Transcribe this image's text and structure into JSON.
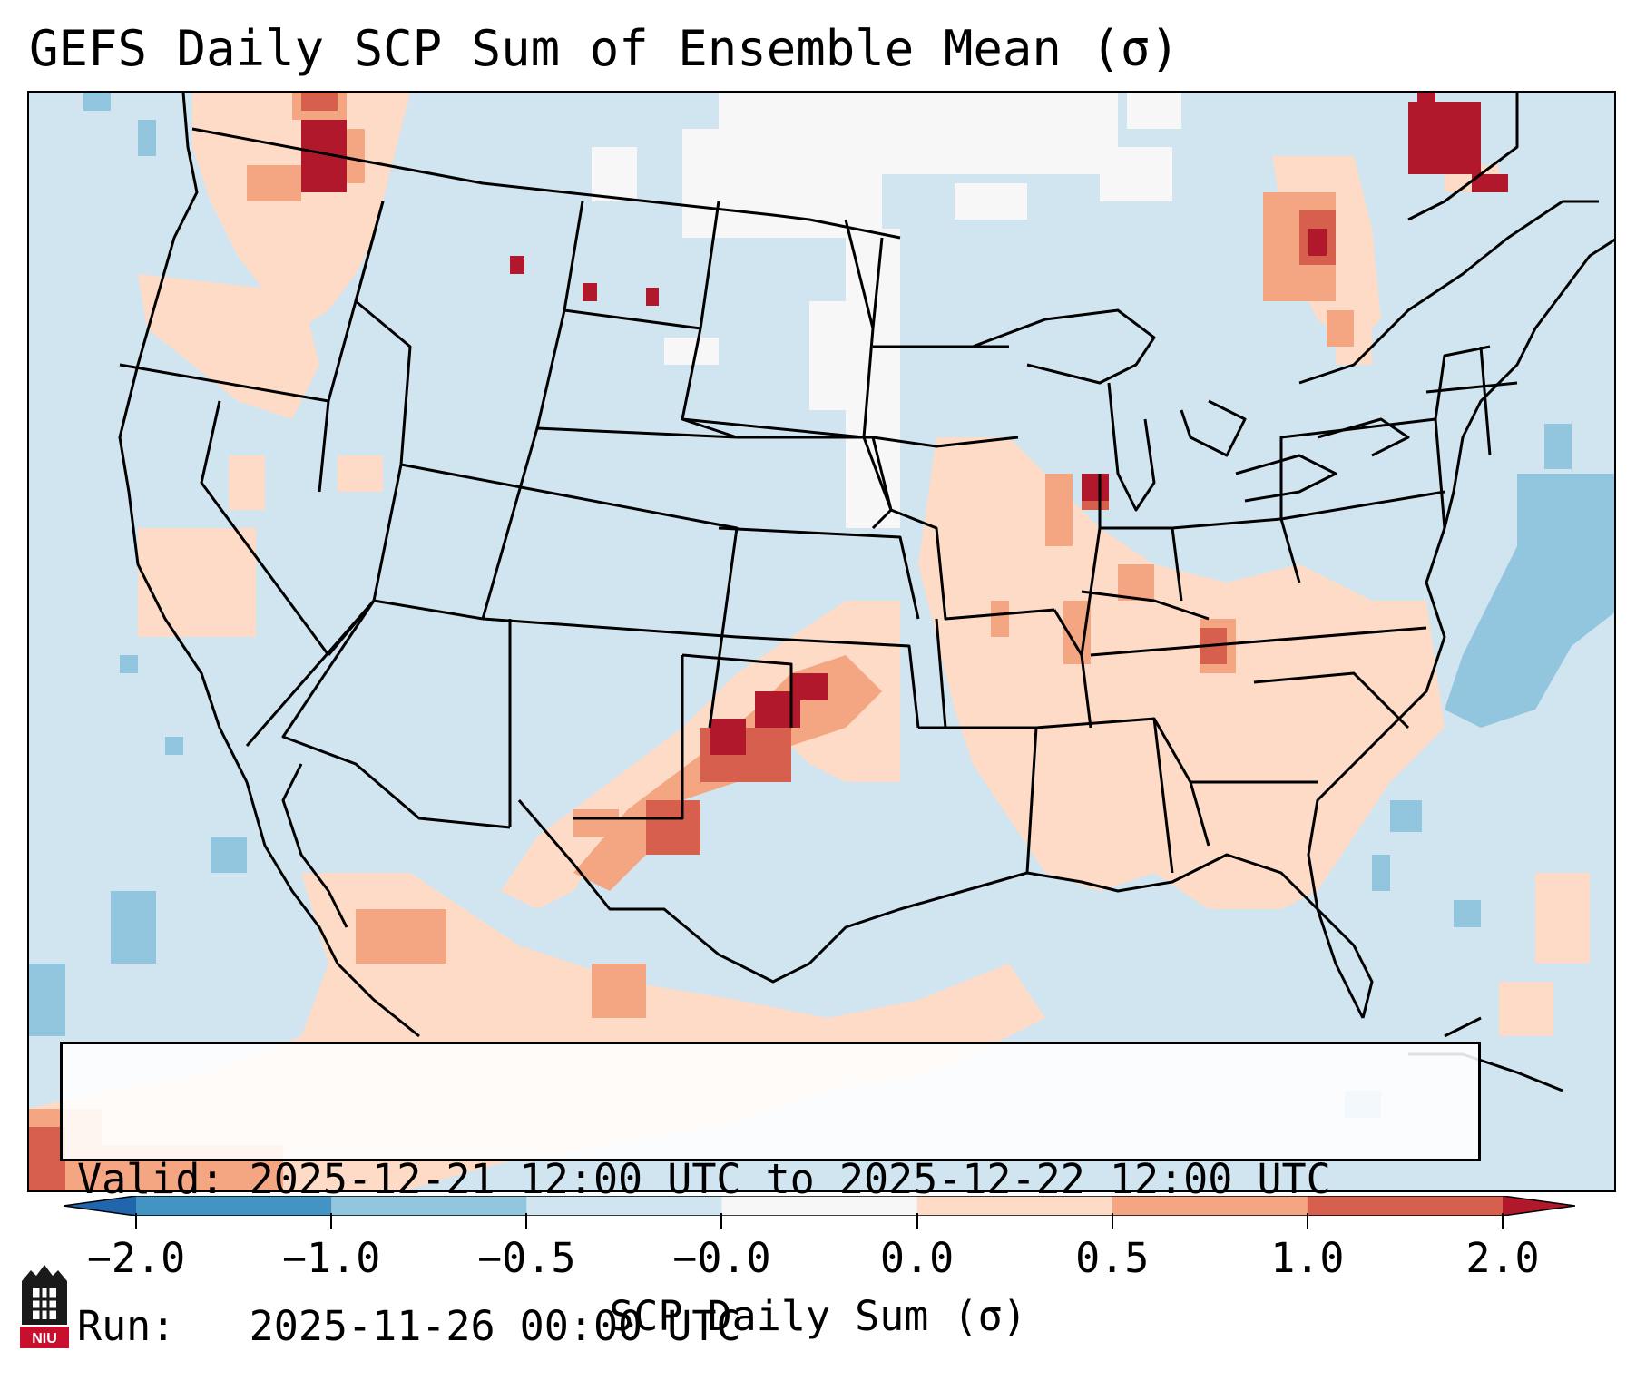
{
  "title": "GEFS Daily SCP Sum of Ensemble Mean (σ)",
  "info": {
    "valid_label": "Valid:",
    "valid_value": "2025-12-21 12:00 UTC to 2025-12-22 12:00 UTC",
    "run_label": "Run:",
    "run_value": "2025-11-26 00:00 UTC"
  },
  "colorbar": {
    "label": "SCP Daily Sum (σ)",
    "tick_labels": [
      "−2.0",
      "−1.0",
      "−0.5",
      "−0.0",
      "0.0",
      "0.5",
      "1.0",
      "2.0"
    ],
    "colors": [
      "#2166ac",
      "#4393c3",
      "#92c5de",
      "#d1e5f0",
      "#f7f7f7",
      "#fddbc7",
      "#f4a582",
      "#d6604d",
      "#b2182b"
    ]
  },
  "logo": {
    "text": "NIU"
  }
}
